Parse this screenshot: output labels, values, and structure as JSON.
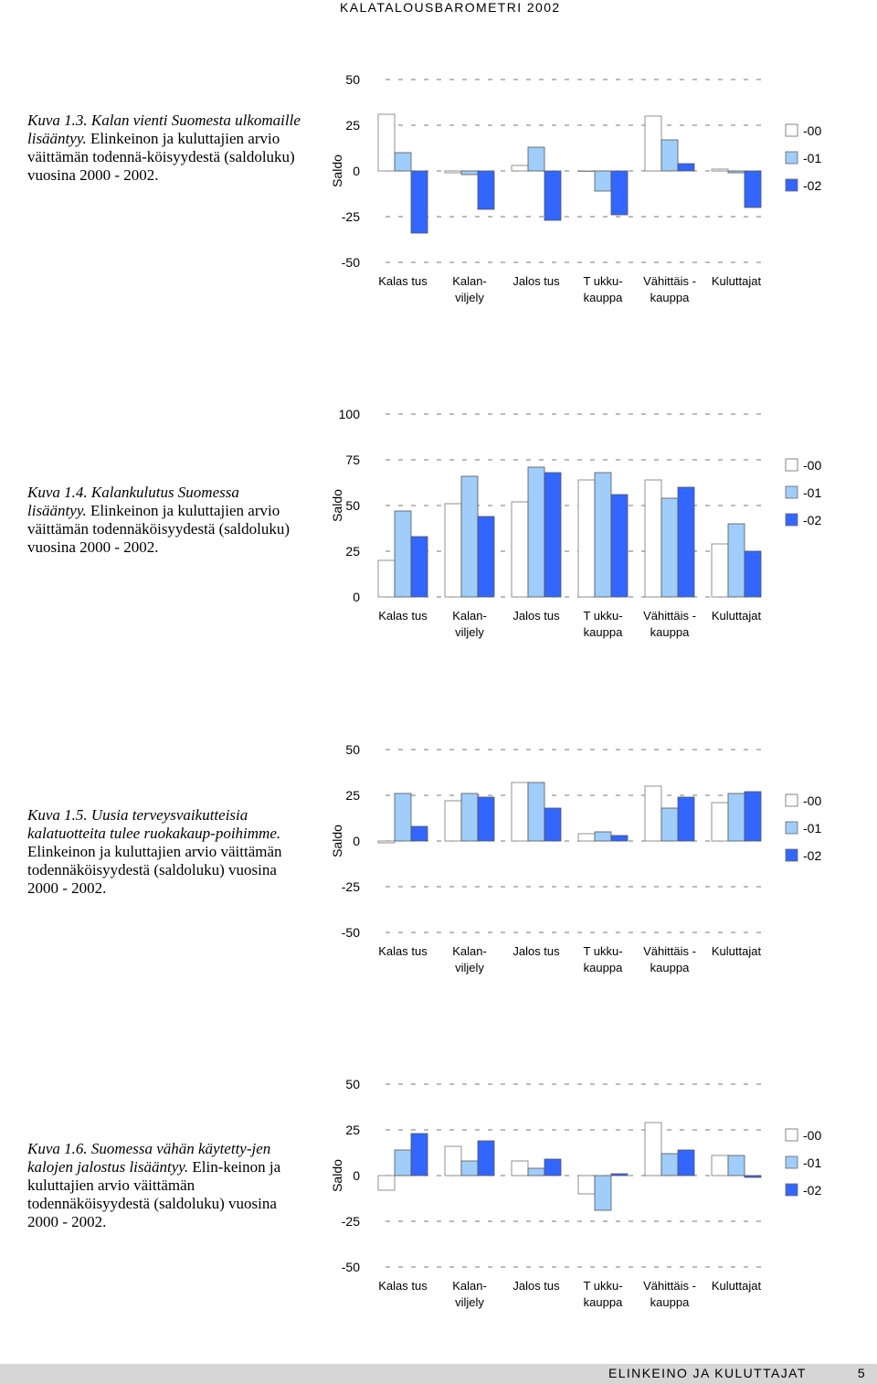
{
  "header": {
    "running_title": "KALATALOUSBAROMETRI 2002"
  },
  "footer": {
    "section_title": "ELINKEINO JA KULUTTAJAT",
    "page_number": "5"
  },
  "legend": {
    "colors": [
      "#ffffff",
      "#a0cdfa",
      "#3366ff"
    ]
  },
  "figures": [
    {
      "caption_italic": "Kuva 1.3. Kalan vienti Suomesta ulkomaille lisääntyy.",
      "caption_rest": " Elinkeinon ja kuluttajien arvio väittämän todennä-köisyydestä (saldoluku) vuosina 2000 - 2002."
    },
    {
      "caption_italic": "Kuva 1.4. Kalankulutus Suomessa lisääntyy.",
      "caption_rest": " Elinkeinon ja kuluttajien arvio väittämän todennäköisyydestä (saldoluku) vuosina 2000 - 2002."
    },
    {
      "caption_italic": "Kuva 1.5. Uusia terveysvaikutteisia kalatuotteita tulee ruokakaup-poihimme.",
      "caption_rest": " Elinkeinon ja kuluttajien arvio väittämän todennäköisyydestä (saldoluku) vuosina 2000 - 2002."
    },
    {
      "caption_italic": "Kuva 1.6. Suomessa vähän käytetty-jen kalojen jalostus lisääntyy.",
      "caption_rest": " Elin-keinon ja kuluttajien arvio väittämän todennäköisyydestä (saldoluku) vuosina 2000 - 2002."
    }
  ],
  "chart_data": [
    {
      "type": "bar",
      "ylabel": "Saldo",
      "ylim": [
        -50,
        50
      ],
      "yticks": [
        50,
        25,
        0,
        -25,
        -50
      ],
      "grid": "dashed horizontal",
      "legend_position": "right",
      "categories": [
        [
          "Kalas tus"
        ],
        [
          "Kalan-",
          "viljely"
        ],
        [
          "Jalos tus"
        ],
        [
          "T ukku-",
          "kauppa"
        ],
        [
          "Vähittäis -",
          "kauppa"
        ],
        [
          "Kuluttajat"
        ]
      ],
      "series": [
        {
          "name": "-00",
          "values": [
            31,
            -1,
            3,
            0,
            30,
            1
          ]
        },
        {
          "name": "-01",
          "values": [
            10,
            -2,
            13,
            -11,
            17,
            -1
          ]
        },
        {
          "name": "-02",
          "values": [
            -34,
            -21,
            -27,
            -24,
            4,
            -20
          ]
        }
      ]
    },
    {
      "type": "bar",
      "ylabel": "Saldo",
      "ylim": [
        0,
        100
      ],
      "yticks": [
        100,
        75,
        50,
        25,
        0
      ],
      "grid": "dashed horizontal",
      "legend_position": "right",
      "categories": [
        [
          "Kalas tus"
        ],
        [
          "Kalan-",
          "viljely"
        ],
        [
          "Jalos tus"
        ],
        [
          "T ukku-",
          "kauppa"
        ],
        [
          "Vähittäis -",
          "kauppa"
        ],
        [
          "Kuluttajat"
        ]
      ],
      "series": [
        {
          "name": "-00",
          "values": [
            20,
            51,
            52,
            64,
            64,
            29
          ]
        },
        {
          "name": "-01",
          "values": [
            47,
            66,
            71,
            68,
            54,
            40
          ]
        },
        {
          "name": "-02",
          "values": [
            33,
            44,
            68,
            56,
            60,
            25
          ]
        }
      ]
    },
    {
      "type": "bar",
      "ylabel": "Saldo",
      "ylim": [
        -50,
        50
      ],
      "yticks": [
        50,
        25,
        0,
        -25,
        -50
      ],
      "grid": "dashed horizontal",
      "legend_position": "right",
      "categories": [
        [
          "Kalas tus"
        ],
        [
          "Kalan-",
          "viljely"
        ],
        [
          "Jalos tus"
        ],
        [
          "T ukku-",
          "kauppa"
        ],
        [
          "Vähittäis -",
          "kauppa"
        ],
        [
          "Kuluttajat"
        ]
      ],
      "series": [
        {
          "name": "-00",
          "values": [
            -1,
            22,
            32,
            4,
            30,
            21
          ]
        },
        {
          "name": "-01",
          "values": [
            26,
            26,
            32,
            5,
            18,
            26
          ]
        },
        {
          "name": "-02",
          "values": [
            8,
            24,
            18,
            3,
            24,
            27
          ]
        }
      ]
    },
    {
      "type": "bar",
      "ylabel": "Saldo",
      "ylim": [
        -50,
        50
      ],
      "yticks": [
        50,
        25,
        0,
        -25,
        -50
      ],
      "grid": "dashed horizontal",
      "legend_position": "right",
      "categories": [
        [
          "Kalas tus"
        ],
        [
          "Kalan-",
          "viljely"
        ],
        [
          "Jalos tus"
        ],
        [
          "T ukku-",
          "kauppa"
        ],
        [
          "Vähittäis -",
          "kauppa"
        ],
        [
          "Kuluttajat"
        ]
      ],
      "series": [
        {
          "name": "-00",
          "values": [
            -8,
            16,
            8,
            -10,
            29,
            11
          ]
        },
        {
          "name": "-01",
          "values": [
            14,
            8,
            4,
            -19,
            12,
            11
          ]
        },
        {
          "name": "-02",
          "values": [
            23,
            19,
            9,
            1,
            14,
            -1
          ]
        }
      ]
    }
  ]
}
